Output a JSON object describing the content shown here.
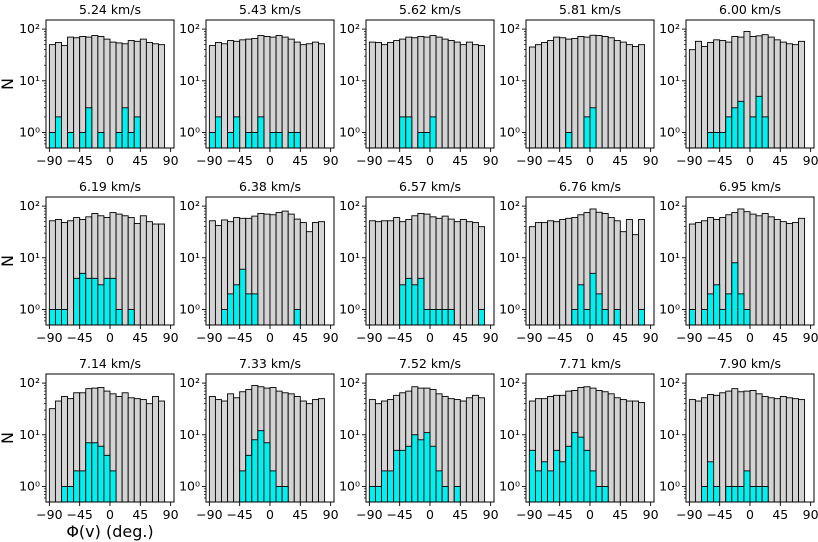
{
  "figure": {
    "ylabel": "N",
    "xlabel": "Φ(v) (deg.)",
    "colors": {
      "background_hist": "#d3d3d3",
      "selected_hist": "#00f0f0",
      "edge": "#000000"
    }
  },
  "chart_data": [
    {
      "type": "bar",
      "title": "5.24 km/s",
      "xlim": [
        -95,
        95
      ],
      "ylim": [
        0.5,
        150
      ],
      "yscale": "log",
      "xticks": [
        -90,
        -45,
        0,
        45,
        90
      ],
      "yticks": [
        1,
        10,
        100
      ],
      "ytick_labels": [
        "10⁰",
        "10¹",
        "10²"
      ],
      "bin_edges_start": -90,
      "bin_width": 9,
      "series": [
        {
          "name": "all",
          "values": [
            50,
            55,
            48,
            70,
            68,
            72,
            70,
            75,
            72,
            64,
            56,
            54,
            52,
            60,
            58,
            64,
            55,
            52,
            50
          ]
        },
        {
          "name": "selected",
          "values": [
            1,
            2,
            0,
            1,
            0,
            1,
            3,
            0,
            1,
            0,
            0,
            1,
            3,
            1,
            2,
            0,
            0,
            0,
            0
          ]
        }
      ]
    },
    {
      "type": "bar",
      "title": "5.43 km/s",
      "xlim": [
        -95,
        95
      ],
      "ylim": [
        0.5,
        150
      ],
      "yscale": "log",
      "xticks": [
        -90,
        -45,
        0,
        45,
        90
      ],
      "yticks": [
        1,
        10,
        100
      ],
      "ytick_labels": [
        "10⁰",
        "10¹",
        "10²"
      ],
      "bin_edges_start": -90,
      "bin_width": 9,
      "series": [
        {
          "name": "all",
          "values": [
            48,
            55,
            52,
            60,
            58,
            62,
            64,
            66,
            75,
            72,
            70,
            75,
            70,
            64,
            56,
            50,
            52,
            56,
            52
          ]
        },
        {
          "name": "selected",
          "values": [
            1,
            2,
            0,
            1,
            2,
            0,
            1,
            1,
            2,
            0,
            1,
            1,
            0,
            1,
            1,
            0,
            0,
            0,
            0
          ]
        }
      ]
    },
    {
      "type": "bar",
      "title": "5.62 km/s",
      "xlim": [
        -95,
        95
      ],
      "ylim": [
        0.5,
        150
      ],
      "yscale": "log",
      "xticks": [
        -90,
        -45,
        0,
        45,
        90
      ],
      "yticks": [
        1,
        10,
        100
      ],
      "ytick_labels": [
        "10⁰",
        "10¹",
        "10²"
      ],
      "bin_edges_start": -90,
      "bin_width": 9,
      "series": [
        {
          "name": "all",
          "values": [
            56,
            55,
            50,
            55,
            60,
            64,
            70,
            68,
            72,
            70,
            75,
            70,
            64,
            60,
            56,
            50,
            56,
            50,
            48
          ]
        },
        {
          "name": "selected",
          "values": [
            0,
            0,
            0,
            0,
            0,
            2,
            2,
            0,
            1,
            1,
            2,
            0,
            0,
            0,
            0,
            0,
            0,
            0,
            0
          ]
        }
      ]
    },
    {
      "type": "bar",
      "title": "5.81 km/s",
      "xlim": [
        -95,
        95
      ],
      "ylim": [
        0.5,
        150
      ],
      "yscale": "log",
      "xticks": [
        -90,
        -45,
        0,
        45,
        90
      ],
      "yticks": [
        1,
        10,
        100
      ],
      "ytick_labels": [
        "10⁰",
        "10¹",
        "10²"
      ],
      "bin_edges_start": -90,
      "bin_width": 9,
      "series": [
        {
          "name": "all",
          "values": [
            45,
            50,
            55,
            60,
            70,
            68,
            64,
            66,
            72,
            70,
            76,
            75,
            72,
            68,
            60,
            56,
            50,
            46,
            50
          ]
        },
        {
          "name": "selected",
          "values": [
            0,
            0,
            0,
            0,
            0,
            0,
            1,
            0,
            0,
            2,
            3,
            0,
            0,
            0,
            0,
            0,
            0,
            0,
            0
          ]
        }
      ]
    },
    {
      "type": "bar",
      "title": "6.00 km/s",
      "xlim": [
        -95,
        95
      ],
      "ylim": [
        0.5,
        150
      ],
      "yscale": "log",
      "xticks": [
        -90,
        -45,
        0,
        45,
        90
      ],
      "yticks": [
        1,
        10,
        100
      ],
      "ytick_labels": [
        "10⁰",
        "10¹",
        "10²"
      ],
      "bin_edges_start": -90,
      "bin_width": 9,
      "series": [
        {
          "name": "all",
          "values": [
            40,
            58,
            46,
            55,
            62,
            60,
            56,
            72,
            70,
            90,
            72,
            74,
            78,
            70,
            62,
            56,
            52,
            50,
            58
          ]
        },
        {
          "name": "selected",
          "values": [
            0,
            0,
            0,
            1,
            1,
            1,
            2,
            3,
            4,
            0,
            2,
            5,
            2,
            0,
            0,
            0,
            0,
            0,
            0
          ]
        }
      ]
    },
    {
      "type": "bar",
      "title": "6.19 km/s",
      "xlim": [
        -95,
        95
      ],
      "ylim": [
        0.5,
        150
      ],
      "yscale": "log",
      "xticks": [
        -90,
        -45,
        0,
        45,
        90
      ],
      "yticks": [
        1,
        10,
        100
      ],
      "ytick_labels": [
        "10⁰",
        "10¹",
        "10²"
      ],
      "bin_edges_start": -90,
      "bin_width": 9,
      "series": [
        {
          "name": "all",
          "values": [
            52,
            55,
            48,
            52,
            60,
            55,
            62,
            72,
            65,
            60,
            75,
            70,
            65,
            60,
            46,
            65,
            50,
            45,
            45
          ]
        },
        {
          "name": "selected",
          "values": [
            1,
            1,
            1,
            0,
            4,
            5,
            4,
            4,
            3,
            4,
            4,
            1,
            0,
            1,
            0,
            0,
            0,
            0,
            0
          ]
        }
      ]
    },
    {
      "type": "bar",
      "title": "6.38 km/s",
      "xlim": [
        -95,
        95
      ],
      "ylim": [
        0.5,
        150
      ],
      "yscale": "log",
      "xticks": [
        -90,
        -45,
        0,
        45,
        90
      ],
      "yticks": [
        1,
        10,
        100
      ],
      "ytick_labels": [
        "10⁰",
        "10¹",
        "10²"
      ],
      "bin_edges_start": -90,
      "bin_width": 9,
      "series": [
        {
          "name": "all",
          "values": [
            52,
            42,
            54,
            50,
            60,
            58,
            58,
            64,
            72,
            70,
            68,
            75,
            80,
            70,
            56,
            48,
            32,
            48,
            50
          ]
        },
        {
          "name": "selected",
          "values": [
            0,
            0,
            1,
            2,
            3,
            6,
            2,
            2,
            0,
            0,
            0,
            0,
            0,
            0,
            1,
            0,
            0,
            0,
            0
          ]
        }
      ]
    },
    {
      "type": "bar",
      "title": "6.57 km/s",
      "xlim": [
        -95,
        95
      ],
      "ylim": [
        0.5,
        150
      ],
      "yscale": "log",
      "xticks": [
        -90,
        -45,
        0,
        45,
        90
      ],
      "yticks": [
        1,
        10,
        100
      ],
      "ytick_labels": [
        "10⁰",
        "10¹",
        "10²"
      ],
      "bin_edges_start": -90,
      "bin_width": 9,
      "series": [
        {
          "name": "all",
          "values": [
            52,
            50,
            52,
            52,
            60,
            50,
            55,
            65,
            72,
            70,
            62,
            58,
            64,
            56,
            50,
            55,
            50,
            48,
            40
          ]
        },
        {
          "name": "selected",
          "values": [
            0,
            0,
            0,
            0,
            0,
            3,
            4,
            3,
            4,
            1,
            1,
            1,
            1,
            1,
            0,
            0,
            0,
            0,
            1
          ]
        }
      ]
    },
    {
      "type": "bar",
      "title": "6.76 km/s",
      "xlim": [
        -95,
        95
      ],
      "ylim": [
        0.5,
        150
      ],
      "yscale": "log",
      "xticks": [
        -90,
        -45,
        0,
        45,
        90
      ],
      "yticks": [
        1,
        10,
        100
      ],
      "ytick_labels": [
        "10⁰",
        "10¹",
        "10²"
      ],
      "bin_edges_start": -90,
      "bin_width": 9,
      "series": [
        {
          "name": "all",
          "values": [
            40,
            48,
            48,
            52,
            50,
            55,
            58,
            60,
            68,
            75,
            88,
            76,
            72,
            60,
            52,
            32,
            55,
            28,
            55
          ]
        },
        {
          "name": "selected",
          "values": [
            0,
            0,
            0,
            0,
            0,
            0,
            0,
            1,
            3,
            1,
            5,
            2,
            1,
            0,
            1,
            0,
            0,
            0,
            1
          ]
        }
      ]
    },
    {
      "type": "bar",
      "title": "6.95 km/s",
      "xlim": [
        -95,
        95
      ],
      "ylim": [
        0.5,
        150
      ],
      "yscale": "log",
      "xticks": [
        -90,
        -45,
        0,
        45,
        90
      ],
      "yticks": [
        1,
        10,
        100
      ],
      "ytick_labels": [
        "10⁰",
        "10¹",
        "10²"
      ],
      "bin_edges_start": -90,
      "bin_width": 9,
      "series": [
        {
          "name": "all",
          "values": [
            45,
            48,
            52,
            60,
            55,
            60,
            68,
            75,
            88,
            78,
            70,
            65,
            72,
            62,
            55,
            50,
            46,
            48,
            58
          ]
        },
        {
          "name": "selected",
          "values": [
            1,
            0,
            1,
            2,
            3,
            1,
            2,
            8,
            2,
            1,
            0,
            0,
            0,
            0,
            0,
            0,
            0,
            0,
            0
          ]
        }
      ]
    },
    {
      "type": "bar",
      "title": "7.14 km/s",
      "xlim": [
        -95,
        95
      ],
      "ylim": [
        0.5,
        150
      ],
      "yscale": "log",
      "xticks": [
        -90,
        -45,
        0,
        45,
        90
      ],
      "yticks": [
        1,
        10,
        100
      ],
      "ytick_labels": [
        "10⁰",
        "10¹",
        "10²"
      ],
      "bin_edges_start": -90,
      "bin_width": 9,
      "series": [
        {
          "name": "all",
          "values": [
            32,
            45,
            55,
            50,
            65,
            65,
            78,
            80,
            82,
            70,
            62,
            55,
            65,
            52,
            50,
            48,
            40,
            55,
            45
          ]
        },
        {
          "name": "selected",
          "values": [
            0,
            0,
            1,
            1,
            2,
            2,
            7,
            7,
            6,
            4,
            2,
            0,
            0,
            0,
            0,
            0,
            0,
            0,
            0
          ]
        }
      ]
    },
    {
      "type": "bar",
      "title": "7.33 km/s",
      "xlim": [
        -95,
        95
      ],
      "ylim": [
        0.5,
        150
      ],
      "yscale": "log",
      "xticks": [
        -90,
        -45,
        0,
        45,
        90
      ],
      "yticks": [
        1,
        10,
        100
      ],
      "ytick_labels": [
        "10⁰",
        "10¹",
        "10²"
      ],
      "bin_edges_start": -90,
      "bin_width": 9,
      "series": [
        {
          "name": "all",
          "values": [
            55,
            48,
            45,
            62,
            52,
            68,
            75,
            90,
            85,
            80,
            82,
            70,
            65,
            62,
            55,
            45,
            40,
            48,
            50
          ]
        },
        {
          "name": "selected",
          "values": [
            0,
            0,
            0,
            0,
            0,
            2,
            4,
            8,
            12,
            7,
            2,
            1,
            1,
            0,
            0,
            0,
            0,
            0,
            0
          ]
        }
      ]
    },
    {
      "type": "bar",
      "title": "7.52 km/s",
      "xlim": [
        -95,
        95
      ],
      "ylim": [
        0.5,
        150
      ],
      "yscale": "log",
      "xticks": [
        -90,
        -45,
        0,
        45,
        90
      ],
      "yticks": [
        1,
        10,
        100
      ],
      "ytick_labels": [
        "10⁰",
        "10¹",
        "10²"
      ],
      "bin_edges_start": -90,
      "bin_width": 9,
      "series": [
        {
          "name": "all",
          "values": [
            48,
            40,
            45,
            48,
            58,
            65,
            70,
            85,
            80,
            80,
            75,
            62,
            55,
            50,
            48,
            45,
            52,
            58,
            52
          ]
        },
        {
          "name": "selected",
          "values": [
            1,
            1,
            2,
            2,
            5,
            5,
            6,
            10,
            8,
            11,
            6,
            2,
            1,
            0,
            1,
            0,
            0,
            0,
            0
          ]
        }
      ]
    },
    {
      "type": "bar",
      "title": "7.71 km/s",
      "xlim": [
        -95,
        95
      ],
      "ylim": [
        0.5,
        150
      ],
      "yscale": "log",
      "xticks": [
        -90,
        -45,
        0,
        45,
        90
      ],
      "yticks": [
        1,
        10,
        100
      ],
      "ytick_labels": [
        "10⁰",
        "10¹",
        "10²"
      ],
      "bin_edges_start": -90,
      "bin_width": 9,
      "series": [
        {
          "name": "all",
          "values": [
            45,
            50,
            50,
            55,
            58,
            58,
            70,
            72,
            82,
            85,
            80,
            72,
            68,
            62,
            52,
            48,
            45,
            45,
            42
          ]
        },
        {
          "name": "selected",
          "values": [
            5,
            2,
            3,
            2,
            5,
            3,
            6,
            11,
            9,
            5,
            2,
            1,
            1,
            0,
            0,
            0,
            0,
            0,
            0
          ]
        }
      ]
    },
    {
      "type": "bar",
      "title": "7.90 km/s",
      "xlim": [
        -95,
        95
      ],
      "ylim": [
        0.5,
        150
      ],
      "yscale": "log",
      "xticks": [
        -90,
        -45,
        0,
        45,
        90
      ],
      "yticks": [
        1,
        10,
        100
      ],
      "ytick_labels": [
        "10⁰",
        "10¹",
        "10²"
      ],
      "bin_edges_start": -90,
      "bin_width": 9,
      "series": [
        {
          "name": "all",
          "values": [
            48,
            45,
            52,
            60,
            58,
            65,
            70,
            78,
            68,
            70,
            72,
            62,
            55,
            52,
            50,
            55,
            52,
            50,
            48
          ]
        },
        {
          "name": "selected",
          "values": [
            0,
            0,
            1,
            3,
            1,
            0,
            1,
            1,
            1,
            2,
            1,
            1,
            1,
            0,
            0,
            0,
            0,
            0,
            0
          ]
        }
      ]
    }
  ]
}
